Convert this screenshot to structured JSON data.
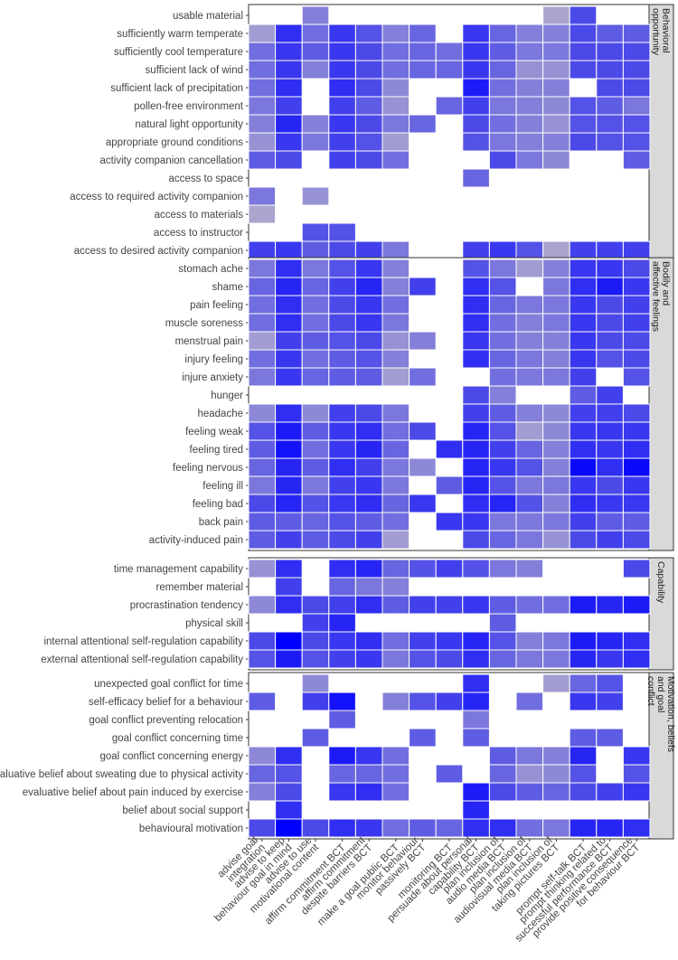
{
  "chart_data": {
    "type": "heatmap",
    "colors": {
      "empty": "#ffffff",
      "strip_fill": "#d9d9d9",
      "low": "#bdb7c9",
      "high": "#0000ff"
    },
    "legend": "none",
    "columns": [
      "advise goal integration",
      "advise to keep behaviour goal in mind",
      "advise to use motivational content",
      "affirm commitment BCT",
      "affirm commitment despite barriers BCT",
      "make a goal public BCT",
      "monitor behaviour passively BCT",
      "monitoring BCT",
      "persuade about personal capability BCT",
      "plan inclusion of audio media BCT",
      "plan inclusion of audiovisual media BCT",
      "plan inclusion of taking pictures BCT",
      "prompt self-talk BCT",
      "prompt thinking related to successful performance BCT",
      "provide positive consequence for behaviour BCT"
    ],
    "panels": [
      {
        "label": "Behavioral opportunity",
        "rows": [
          {
            "label": "usable material",
            "values": [
              null,
              null,
              0.3,
              null,
              null,
              null,
              null,
              null,
              null,
              null,
              null,
              0.1,
              0.6,
              null,
              null
            ]
          },
          {
            "label": "sufficiently warm temperate",
            "values": [
              0.15,
              0.75,
              0.4,
              0.7,
              0.55,
              0.3,
              0.45,
              null,
              0.7,
              0.45,
              0.3,
              0.3,
              0.6,
              0.5,
              0.5
            ]
          },
          {
            "label": "sufficiently cool temperature",
            "values": [
              0.4,
              0.7,
              0.5,
              0.7,
              0.6,
              0.4,
              0.45,
              0.4,
              0.7,
              0.5,
              0.35,
              0.35,
              0.6,
              0.6,
              0.6
            ]
          },
          {
            "label": "sufficient lack of wind",
            "values": [
              0.4,
              0.7,
              0.3,
              0.7,
              0.6,
              0.4,
              0.45,
              0.45,
              0.7,
              0.45,
              0.2,
              0.2,
              0.6,
              0.6,
              0.6
            ]
          },
          {
            "label": "sufficient lack of precipitation",
            "values": [
              0.4,
              0.75,
              null,
              0.75,
              0.6,
              0.25,
              null,
              null,
              0.85,
              0.4,
              0.3,
              0.3,
              null,
              0.6,
              0.6
            ]
          },
          {
            "label": "pollen-free environment",
            "values": [
              0.35,
              0.65,
              null,
              0.65,
              0.5,
              0.2,
              null,
              0.45,
              0.65,
              0.35,
              0.3,
              0.25,
              0.55,
              0.5,
              0.35
            ]
          },
          {
            "label": "natural light opportunity",
            "values": [
              0.3,
              0.8,
              0.3,
              0.7,
              0.6,
              0.35,
              0.45,
              null,
              0.6,
              0.4,
              0.3,
              0.2,
              0.55,
              0.55,
              0.55
            ]
          },
          {
            "label": "appropriate ground conditions",
            "values": [
              0.2,
              0.7,
              0.35,
              0.65,
              0.55,
              0.15,
              null,
              null,
              0.55,
              0.35,
              0.3,
              0.3,
              0.6,
              0.55,
              0.55
            ]
          },
          {
            "label": "activity companion cancellation",
            "values": [
              0.5,
              0.6,
              null,
              0.65,
              0.6,
              0.4,
              null,
              null,
              null,
              0.6,
              0.35,
              0.25,
              null,
              null,
              0.5
            ]
          },
          {
            "label": "access to space",
            "values": [
              null,
              null,
              null,
              null,
              null,
              null,
              null,
              null,
              0.45,
              null,
              null,
              null,
              null,
              null,
              null
            ]
          },
          {
            "label": "access to required activity companion",
            "values": [
              0.35,
              null,
              0.2,
              null,
              null,
              null,
              null,
              null,
              null,
              null,
              null,
              null,
              null,
              null,
              null
            ]
          },
          {
            "label": "access to materials",
            "values": [
              0.1,
              null,
              null,
              null,
              null,
              null,
              null,
              null,
              null,
              null,
              null,
              null,
              null,
              null,
              null
            ]
          },
          {
            "label": "access to instructor",
            "values": [
              null,
              null,
              0.55,
              0.55,
              null,
              null,
              null,
              null,
              null,
              null,
              null,
              null,
              null,
              null,
              null
            ]
          },
          {
            "label": "access to desired activity companion",
            "values": [
              0.65,
              0.7,
              0.5,
              0.6,
              0.65,
              0.35,
              null,
              null,
              0.65,
              0.7,
              0.55,
              0.1,
              0.65,
              0.65,
              0.65
            ]
          }
        ]
      },
      {
        "label": "Bodily and affective feelings",
        "rows": [
          {
            "label": "stomach ache",
            "values": [
              0.35,
              0.75,
              0.35,
              0.55,
              0.7,
              0.3,
              null,
              null,
              0.55,
              0.35,
              0.15,
              0.3,
              0.7,
              0.7,
              0.6
            ]
          },
          {
            "label": "shame",
            "values": [
              0.45,
              0.8,
              0.45,
              0.65,
              0.8,
              0.3,
              0.65,
              null,
              0.75,
              0.55,
              null,
              0.35,
              0.75,
              0.85,
              0.7
            ]
          },
          {
            "label": "pain feeling",
            "values": [
              0.4,
              0.75,
              0.4,
              0.6,
              0.7,
              0.4,
              null,
              null,
              0.75,
              0.45,
              0.35,
              0.35,
              0.7,
              0.6,
              0.65
            ]
          },
          {
            "label": "muscle soreness",
            "values": [
              0.4,
              0.75,
              0.4,
              0.6,
              0.7,
              0.35,
              null,
              null,
              0.75,
              0.4,
              0.3,
              0.35,
              0.7,
              0.6,
              0.65
            ]
          },
          {
            "label": "menstrual pain",
            "values": [
              0.15,
              0.65,
              0.5,
              0.55,
              0.6,
              0.2,
              0.3,
              null,
              0.7,
              0.4,
              0.3,
              0.3,
              0.7,
              0.6,
              0.6
            ]
          },
          {
            "label": "injury feeling",
            "values": [
              0.4,
              0.7,
              0.4,
              0.5,
              0.55,
              0.3,
              null,
              null,
              0.75,
              0.45,
              0.35,
              0.3,
              0.7,
              0.55,
              0.6
            ]
          },
          {
            "label": "injure anxiety",
            "values": [
              0.35,
              0.7,
              0.45,
              0.5,
              0.5,
              0.15,
              0.4,
              null,
              null,
              0.4,
              0.35,
              0.35,
              0.65,
              null,
              0.55
            ]
          },
          {
            "label": "hunger",
            "values": [
              null,
              null,
              null,
              null,
              null,
              null,
              null,
              null,
              0.6,
              0.3,
              null,
              null,
              0.5,
              0.65,
              null
            ]
          },
          {
            "label": "headache",
            "values": [
              0.25,
              0.75,
              0.25,
              0.65,
              0.6,
              0.35,
              null,
              null,
              0.65,
              0.5,
              0.3,
              0.25,
              0.65,
              0.65,
              0.6
            ]
          },
          {
            "label": "feeling weak",
            "values": [
              0.55,
              0.85,
              0.5,
              0.7,
              0.75,
              0.4,
              0.6,
              null,
              0.8,
              0.55,
              0.15,
              0.25,
              0.7,
              0.7,
              0.7
            ]
          },
          {
            "label": "feeling tired",
            "values": [
              0.5,
              0.9,
              0.4,
              0.7,
              0.8,
              0.45,
              null,
              0.75,
              0.8,
              0.65,
              0.45,
              0.3,
              0.75,
              0.7,
              0.75
            ]
          },
          {
            "label": "feeling nervous",
            "values": [
              0.45,
              0.8,
              0.5,
              0.75,
              0.65,
              0.35,
              0.25,
              null,
              0.8,
              0.7,
              0.55,
              0.3,
              0.95,
              0.75,
              0.95
            ]
          },
          {
            "label": "feeling ill",
            "values": [
              0.35,
              0.8,
              0.35,
              0.65,
              0.7,
              0.35,
              null,
              0.5,
              0.8,
              0.55,
              0.35,
              0.35,
              0.7,
              0.6,
              0.7
            ]
          },
          {
            "label": "feeling bad",
            "values": [
              0.6,
              0.8,
              0.55,
              0.7,
              0.75,
              0.45,
              0.7,
              null,
              0.75,
              0.8,
              0.55,
              0.3,
              0.75,
              0.7,
              0.7
            ]
          },
          {
            "label": "back pain",
            "values": [
              0.5,
              0.5,
              0.45,
              0.55,
              0.5,
              0.4,
              null,
              0.7,
              0.7,
              0.35,
              0.35,
              0.35,
              0.65,
              0.5,
              0.5
            ]
          },
          {
            "label": "activity-induced pain",
            "values": [
              0.5,
              0.65,
              0.5,
              0.6,
              0.65,
              0.15,
              null,
              null,
              0.6,
              0.45,
              0.35,
              0.2,
              0.6,
              0.65,
              0.6
            ]
          }
        ]
      },
      {
        "label": "Capability",
        "rows": [
          {
            "label": "time management capability",
            "values": [
              0.2,
              0.75,
              null,
              0.75,
              0.8,
              0.45,
              0.55,
              0.65,
              0.55,
              0.35,
              0.3,
              null,
              null,
              null,
              0.6
            ]
          },
          {
            "label": "remember material",
            "values": [
              null,
              0.65,
              null,
              0.45,
              0.35,
              0.3,
              null,
              null,
              null,
              null,
              null,
              null,
              null,
              null,
              null
            ]
          },
          {
            "label": "procrastination tendency",
            "values": [
              0.25,
              0.75,
              0.6,
              0.65,
              0.75,
              0.5,
              0.65,
              0.65,
              0.7,
              0.5,
              0.4,
              0.4,
              0.85,
              0.8,
              0.85
            ]
          },
          {
            "label": "physical skill",
            "values": [
              null,
              null,
              0.65,
              0.8,
              null,
              null,
              null,
              null,
              null,
              0.5,
              null,
              null,
              null,
              null,
              null
            ]
          },
          {
            "label": "internal attentional self-regulation capability",
            "values": [
              0.6,
              1.0,
              0.6,
              0.7,
              0.75,
              0.4,
              0.65,
              0.7,
              0.8,
              0.55,
              0.3,
              0.35,
              0.85,
              0.8,
              0.75
            ]
          },
          {
            "label": "external attentional self-regulation capability",
            "values": [
              0.55,
              0.85,
              0.55,
              0.65,
              0.7,
              0.35,
              0.55,
              0.6,
              0.75,
              0.45,
              0.35,
              0.35,
              0.8,
              0.7,
              0.75
            ]
          }
        ]
      },
      {
        "label": "Motivation, beliefs and goal conflict",
        "rows": [
          {
            "label": "unexpected goal conflict for time",
            "values": [
              null,
              null,
              0.25,
              null,
              null,
              null,
              null,
              null,
              0.75,
              null,
              null,
              0.15,
              0.45,
              0.55,
              null
            ]
          },
          {
            "label": "self-efficacy belief for a behaviour",
            "values": [
              0.5,
              null,
              0.65,
              0.9,
              null,
              0.3,
              0.55,
              0.65,
              0.8,
              null,
              0.4,
              null,
              0.7,
              0.65,
              null
            ]
          },
          {
            "label": "goal conflict preventing relocation",
            "values": [
              null,
              null,
              null,
              0.5,
              null,
              null,
              null,
              null,
              0.35,
              null,
              null,
              null,
              null,
              null,
              null
            ]
          },
          {
            "label": "goal conflict concerning time",
            "values": [
              null,
              null,
              0.5,
              null,
              null,
              null,
              0.5,
              null,
              0.5,
              null,
              null,
              null,
              0.5,
              0.5,
              null
            ]
          },
          {
            "label": "goal conflict concerning energy",
            "values": [
              0.25,
              0.75,
              null,
              0.85,
              0.7,
              0.4,
              null,
              null,
              null,
              0.5,
              0.35,
              0.3,
              0.8,
              null,
              0.7
            ]
          },
          {
            "label": "evaluative belief about sweating due to physical activity",
            "values": [
              0.45,
              0.55,
              null,
              0.45,
              0.45,
              0.4,
              null,
              0.5,
              null,
              0.45,
              0.2,
              0.25,
              0.55,
              null,
              0.55
            ]
          },
          {
            "label": "evaluative belief about pain induced by exercise",
            "values": [
              0.3,
              0.6,
              null,
              0.7,
              0.75,
              0.4,
              null,
              null,
              0.85,
              0.6,
              0.5,
              0.45,
              0.6,
              0.65,
              0.7
            ]
          },
          {
            "label": "belief about social support",
            "values": [
              null,
              0.75,
              null,
              null,
              null,
              null,
              null,
              null,
              0.8,
              null,
              null,
              null,
              null,
              null,
              null
            ]
          },
          {
            "label": "behavioural motivation",
            "values": [
              0.6,
              1.0,
              0.6,
              0.75,
              0.7,
              0.4,
              0.5,
              0.45,
              0.75,
              0.75,
              0.4,
              0.35,
              0.8,
              0.8,
              0.75
            ]
          }
        ]
      }
    ]
  }
}
